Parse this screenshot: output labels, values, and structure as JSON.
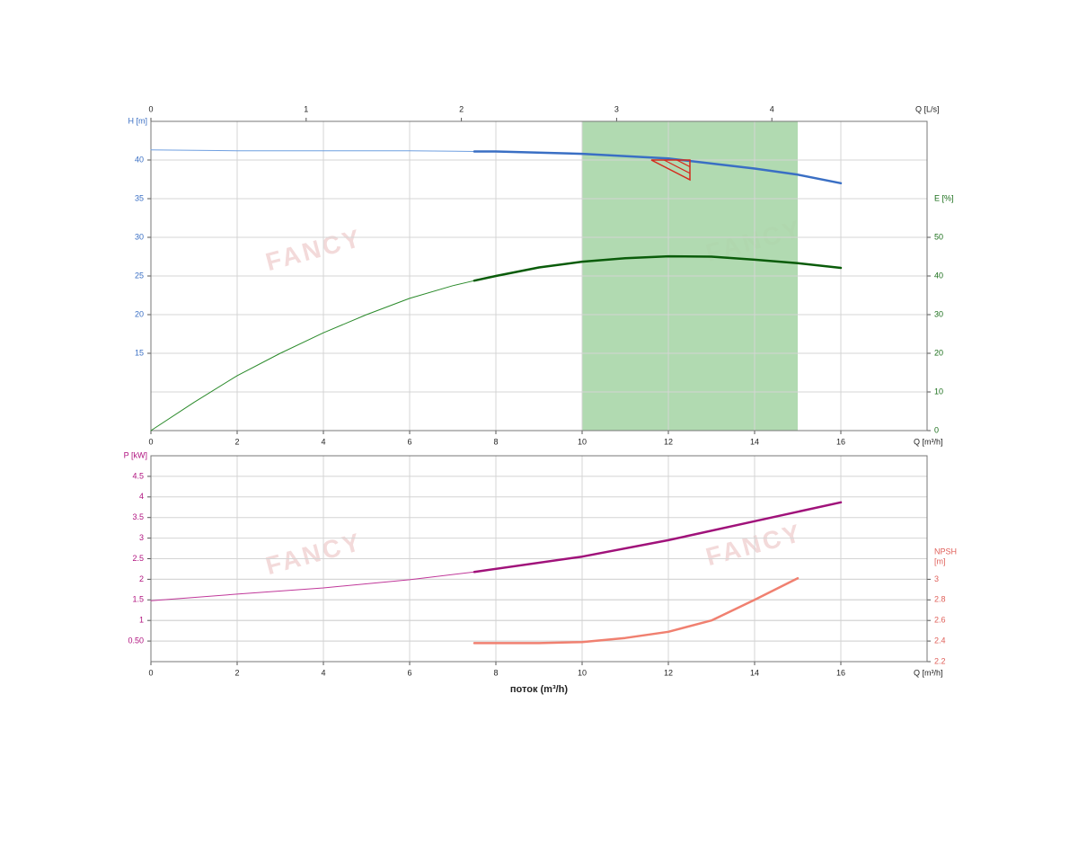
{
  "watermark": "FANCY",
  "chart_data": [
    {
      "type": "line",
      "xlabel": "Q [m³/h]",
      "x2label": "Q [L/s]",
      "ylabel": "H [m]",
      "y2label": "E [%]",
      "ylabel_color": "#3a6fc4",
      "y2label_color": "#1a6e1a",
      "xlim": [
        0,
        18
      ],
      "xticks": [
        0,
        2,
        4,
        6,
        8,
        10,
        12,
        14,
        16
      ],
      "x2lim": [
        0,
        5
      ],
      "x2ticks": [
        0,
        1,
        2,
        3,
        4
      ],
      "ylim": [
        5,
        45
      ],
      "yticks": [
        15,
        20,
        25,
        30,
        35,
        40
      ],
      "y2lim": [
        0,
        80
      ],
      "y2ticks": [
        0,
        10,
        20,
        30,
        40,
        50
      ],
      "grid": true,
      "band": {
        "xlim": [
          10,
          15
        ],
        "color": "#a9d6a9"
      },
      "duty_point": {
        "x": 12.5,
        "y": 40,
        "color": "#d42a1c"
      },
      "series": [
        {
          "color": "#6f9fe0",
          "width": 1,
          "x": [
            0,
            2,
            4,
            6,
            7.5
          ],
          "values": [
            41.3,
            41.2,
            41.2,
            41.2,
            41.1
          ]
        },
        {
          "color": "#3a6fc4",
          "width": 2.5,
          "x": [
            7.5,
            8,
            10,
            12,
            14,
            15,
            16
          ],
          "values": [
            41.1,
            41.1,
            40.8,
            40.2,
            38.9,
            38.1,
            37.0
          ]
        },
        {
          "color": "#2a8a2a",
          "width": 1,
          "axis": "y2",
          "x": [
            0,
            1,
            2,
            3,
            4,
            5,
            6,
            7,
            7.5
          ],
          "values": [
            0,
            7.3,
            14.2,
            20,
            25.3,
            30,
            34.2,
            37.5,
            38.8
          ]
        },
        {
          "color": "#0a5c0a",
          "width": 2.5,
          "axis": "y2",
          "x": [
            7.5,
            8,
            9,
            10,
            11,
            12,
            13,
            14,
            15,
            16
          ],
          "values": [
            38.8,
            40.0,
            42.2,
            43.7,
            44.6,
            45.1,
            45.0,
            44.2,
            43.3,
            42.1
          ]
        }
      ]
    },
    {
      "type": "line",
      "xlabel": "Q [m³/h]",
      "xtitle": "поток (m³/h)",
      "ylabel": "P [kW]",
      "y2label": [
        "NPSH",
        "[m]"
      ],
      "ylabel_color": "#b0127f",
      "y2label_color": "#e0605a",
      "xlim": [
        0,
        18
      ],
      "xticks": [
        0,
        2,
        4,
        6,
        8,
        10,
        12,
        14,
        16
      ],
      "ylim": [
        0,
        5
      ],
      "yticks": [
        {
          "value": 0.5,
          "label": "0.50"
        },
        1,
        1.5,
        2,
        2.5,
        3,
        3.5,
        4,
        4.5
      ],
      "y2lim": [
        2.2,
        4.2
      ],
      "y2ticks": [
        2.2,
        2.4,
        2.6,
        2.8,
        3
      ],
      "grid": true,
      "series": [
        {
          "color": "#c0389a",
          "width": 1,
          "x": [
            0,
            2,
            4,
            6,
            7.5
          ],
          "values": [
            1.48,
            1.64,
            1.79,
            1.99,
            2.18
          ]
        },
        {
          "color": "#a0127a",
          "width": 2.5,
          "x": [
            7.5,
            10,
            12,
            14,
            16
          ],
          "values": [
            2.18,
            2.55,
            2.95,
            3.41,
            3.87
          ]
        },
        {
          "color": "#f08070",
          "width": 2.5,
          "axis": "y2",
          "x": [
            7.5,
            9,
            10,
            11,
            12,
            13,
            14,
            15
          ],
          "values": [
            2.38,
            2.38,
            2.39,
            2.43,
            2.49,
            2.6,
            2.8,
            3.01
          ]
        }
      ]
    }
  ]
}
